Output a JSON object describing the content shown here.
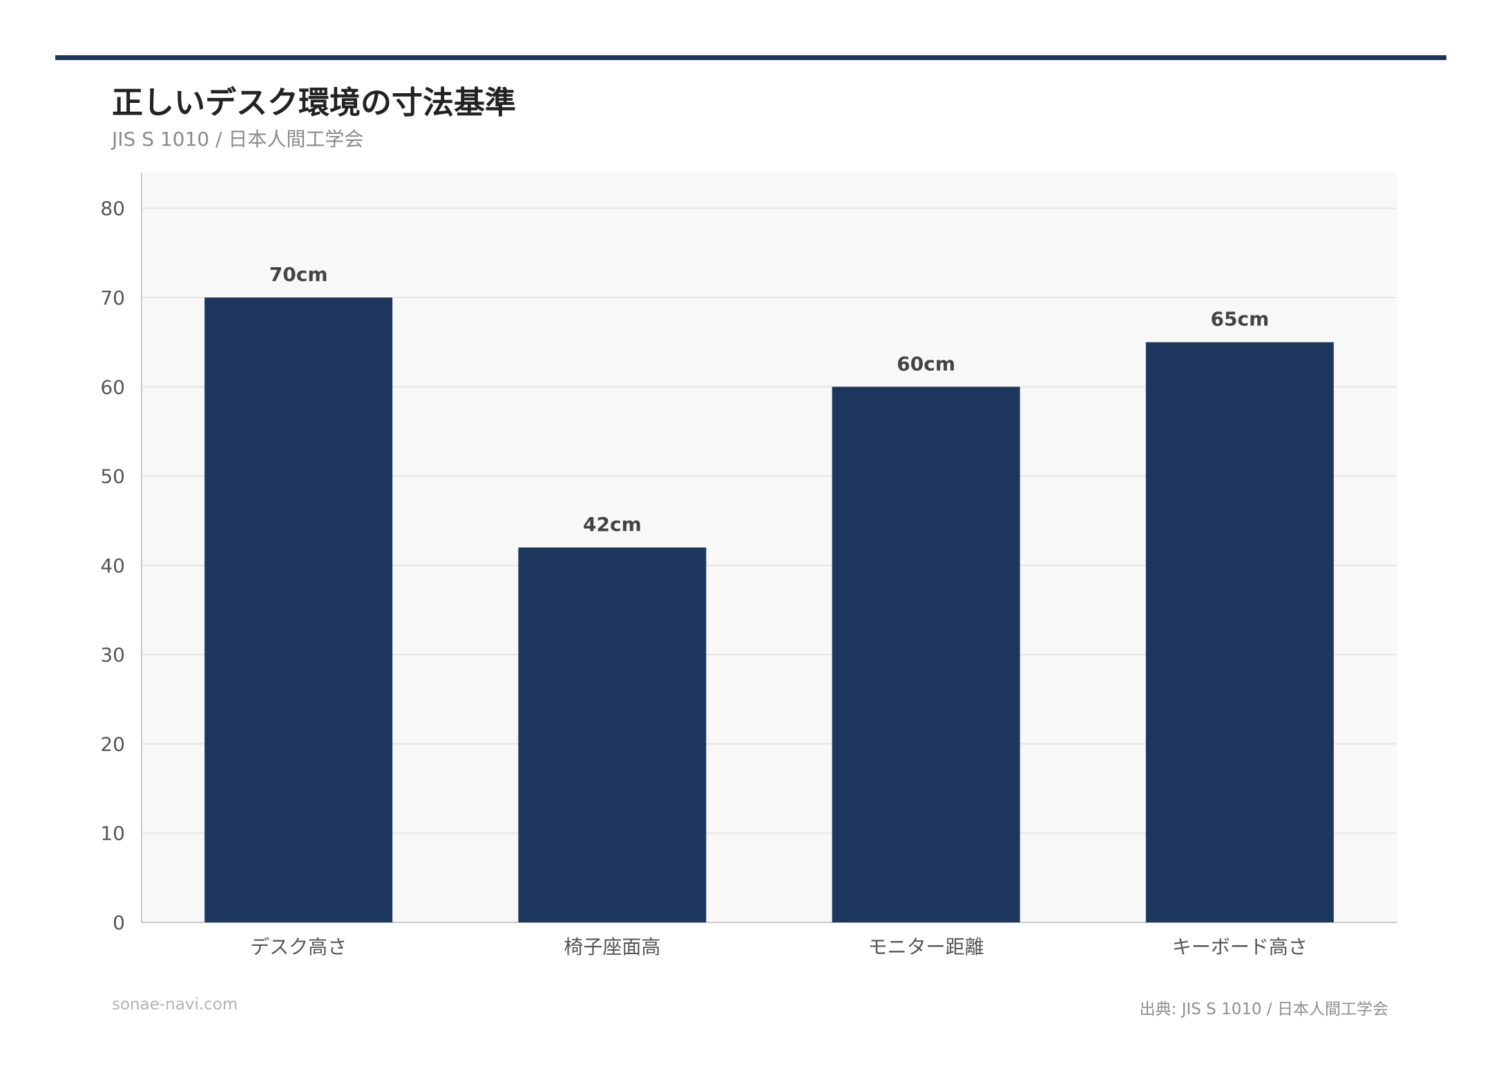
{
  "header": {
    "title": "正しいデスク環境の寸法基準",
    "subtitle": "JIS S 1010 / 日本人間工学会"
  },
  "footer": {
    "site": "sonae-navi.com",
    "source": "出典: JIS S 1010 / 日本人間工学会"
  },
  "colors": {
    "bar": "#1c365d",
    "accent_rule": "#1c365d",
    "plot_background": "#f8f8f8",
    "grid": "#e4e4e4",
    "axis": "#c8c8c8",
    "tick_text": "#555555",
    "value_label": "#444444"
  },
  "chart_data": {
    "type": "bar",
    "title": "正しいデスク環境の寸法基準",
    "subtitle": "JIS S 1010 / 日本人間工学会",
    "categories": [
      "デスク高さ",
      "椅子座面高",
      "モニター距離",
      "キーボード高さ"
    ],
    "values": [
      70,
      42,
      60,
      65
    ],
    "value_labels": [
      "70cm",
      "42cm",
      "60cm",
      "65cm"
    ],
    "ylim": [
      0,
      84
    ],
    "yticks": [
      0,
      10,
      20,
      30,
      40,
      50,
      60,
      70,
      80
    ],
    "grid": true,
    "legend": "none",
    "xlabel": "",
    "ylabel": ""
  }
}
